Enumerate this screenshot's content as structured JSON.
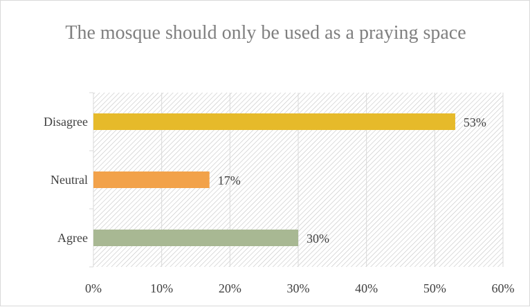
{
  "chart_data": {
    "type": "bar",
    "orientation": "horizontal",
    "title": "The mosque should only be used as a praying space",
    "categories": [
      "Disagree",
      "Neutral",
      "Agree"
    ],
    "values": [
      53,
      17,
      30
    ],
    "data_labels": [
      "53%",
      "17%",
      "30%"
    ],
    "colors": [
      "#e6ba2a",
      "#f2a24a",
      "#a8b893"
    ],
    "xlim": [
      0,
      60
    ],
    "xticks": [
      "0%",
      "10%",
      "20%",
      "30%",
      "40%",
      "50%",
      "60%"
    ],
    "grid": true,
    "plot_fill": "diagonal-hatch",
    "legend": "none"
  }
}
